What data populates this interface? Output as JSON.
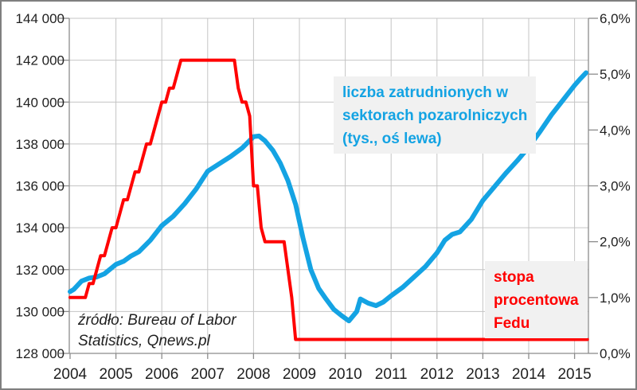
{
  "window": {
    "background": "#ffffff",
    "border_color": "#7f7f7f"
  },
  "chart_data": {
    "type": "line",
    "title": "",
    "grid": true,
    "colors": {
      "gridline": "#c4c4c4",
      "axis": "#8c8c8c",
      "text": "#1f1f1f"
    },
    "x_axis": {
      "min": 2004,
      "max": 2015.32,
      "tick_values": [
        2004,
        2005,
        2006,
        2007,
        2008,
        2009,
        2010,
        2011,
        2012,
        2013,
        2014,
        2015
      ],
      "tick_labels": [
        "2004",
        "2005",
        "2006",
        "2007",
        "2008",
        "2009",
        "2010",
        "2011",
        "2012",
        "2013",
        "2014",
        "2015"
      ]
    },
    "left_axis": {
      "min": 128000,
      "max": 144000,
      "step": 2000,
      "tick_labels": [
        "144 000",
        "142 000",
        "140 000",
        "138 000",
        "136 000",
        "134 000",
        "132 000",
        "130 000",
        "128 000"
      ]
    },
    "right_axis": {
      "min": 0,
      "max": 6,
      "step": 1,
      "tick_labels": [
        "6,0%",
        "5,0%",
        "4,0%",
        "3,0%",
        "2,0%",
        "1,0%",
        "0,0%"
      ]
    },
    "series": [
      {
        "name": "liczba zatrudnionych w sektorach pozarolniczych (tys., oś lewa)",
        "axis": "left",
        "color": "#14a3e3",
        "stroke_width": 6,
        "points": [
          [
            2004.0,
            130950
          ],
          [
            2004.08,
            131050
          ],
          [
            2004.25,
            131450
          ],
          [
            2004.42,
            131600
          ],
          [
            2004.58,
            131650
          ],
          [
            2004.75,
            131800
          ],
          [
            2005.0,
            132250
          ],
          [
            2005.17,
            132400
          ],
          [
            2005.33,
            132650
          ],
          [
            2005.5,
            132850
          ],
          [
            2005.75,
            133400
          ],
          [
            2006.0,
            134100
          ],
          [
            2006.25,
            134550
          ],
          [
            2006.5,
            135150
          ],
          [
            2006.75,
            135850
          ],
          [
            2007.0,
            136700
          ],
          [
            2007.25,
            137050
          ],
          [
            2007.5,
            137400
          ],
          [
            2007.75,
            137800
          ],
          [
            2008.0,
            138350
          ],
          [
            2008.12,
            138380
          ],
          [
            2008.25,
            138150
          ],
          [
            2008.42,
            137700
          ],
          [
            2008.58,
            137100
          ],
          [
            2008.75,
            136250
          ],
          [
            2008.92,
            135100
          ],
          [
            2009.08,
            133500
          ],
          [
            2009.25,
            132000
          ],
          [
            2009.42,
            131100
          ],
          [
            2009.58,
            130600
          ],
          [
            2009.75,
            130100
          ],
          [
            2009.92,
            129800
          ],
          [
            2010.08,
            129550
          ],
          [
            2010.25,
            130000
          ],
          [
            2010.33,
            130600
          ],
          [
            2010.5,
            130400
          ],
          [
            2010.67,
            130280
          ],
          [
            2010.83,
            130450
          ],
          [
            2011.0,
            130750
          ],
          [
            2011.25,
            131150
          ],
          [
            2011.5,
            131650
          ],
          [
            2011.75,
            132150
          ],
          [
            2012.0,
            132800
          ],
          [
            2012.17,
            133400
          ],
          [
            2012.33,
            133680
          ],
          [
            2012.5,
            133800
          ],
          [
            2012.75,
            134400
          ],
          [
            2013.0,
            135300
          ],
          [
            2013.25,
            135950
          ],
          [
            2013.5,
            136600
          ],
          [
            2013.75,
            137200
          ],
          [
            2014.0,
            137850
          ],
          [
            2014.25,
            138600
          ],
          [
            2014.5,
            139400
          ],
          [
            2014.75,
            140100
          ],
          [
            2015.0,
            140800
          ],
          [
            2015.12,
            141100
          ],
          [
            2015.25,
            141400
          ]
        ]
      },
      {
        "name": "stopa procentowa Fedu",
        "axis": "right",
        "color": "#ff0000",
        "stroke_width": 4,
        "points": [
          [
            2004.0,
            1.0
          ],
          [
            2004.333,
            1.0
          ],
          [
            2004.417,
            1.25
          ],
          [
            2004.5,
            1.25
          ],
          [
            2004.583,
            1.5
          ],
          [
            2004.667,
            1.75
          ],
          [
            2004.75,
            1.75
          ],
          [
            2004.833,
            2.0
          ],
          [
            2004.917,
            2.25
          ],
          [
            2005.0,
            2.25
          ],
          [
            2005.083,
            2.5
          ],
          [
            2005.167,
            2.75
          ],
          [
            2005.25,
            2.75
          ],
          [
            2005.333,
            3.0
          ],
          [
            2005.417,
            3.25
          ],
          [
            2005.5,
            3.25
          ],
          [
            2005.583,
            3.5
          ],
          [
            2005.667,
            3.75
          ],
          [
            2005.75,
            3.75
          ],
          [
            2005.833,
            4.0
          ],
          [
            2005.917,
            4.25
          ],
          [
            2006.0,
            4.5
          ],
          [
            2006.083,
            4.5
          ],
          [
            2006.167,
            4.75
          ],
          [
            2006.25,
            4.75
          ],
          [
            2006.333,
            5.0
          ],
          [
            2006.417,
            5.25
          ],
          [
            2007.583,
            5.25
          ],
          [
            2007.667,
            4.75
          ],
          [
            2007.75,
            4.5
          ],
          [
            2007.833,
            4.5
          ],
          [
            2007.917,
            4.25
          ],
          [
            2008.0,
            3.0
          ],
          [
            2008.083,
            3.0
          ],
          [
            2008.167,
            2.25
          ],
          [
            2008.25,
            2.0
          ],
          [
            2008.667,
            2.0
          ],
          [
            2008.75,
            1.5
          ],
          [
            2008.833,
            1.0
          ],
          [
            2008.917,
            0.25
          ],
          [
            2015.28,
            0.25
          ]
        ]
      }
    ]
  },
  "annotations": {
    "payrolls": {
      "bg": "#f1f1f1",
      "color": "#14a3e3",
      "lines": [
        "liczba zatrudnionych w",
        "sektorach pozarolniczych",
        "(tys., oś lewa)"
      ]
    },
    "fed": {
      "bg": "#f1f1f1",
      "color": "#ff0000",
      "lines": [
        "stopa",
        "procentowa",
        "Fedu"
      ]
    },
    "source": {
      "lines": [
        "źródło: Bureau of Labor",
        "Statistics, Qnews.pl"
      ]
    }
  }
}
